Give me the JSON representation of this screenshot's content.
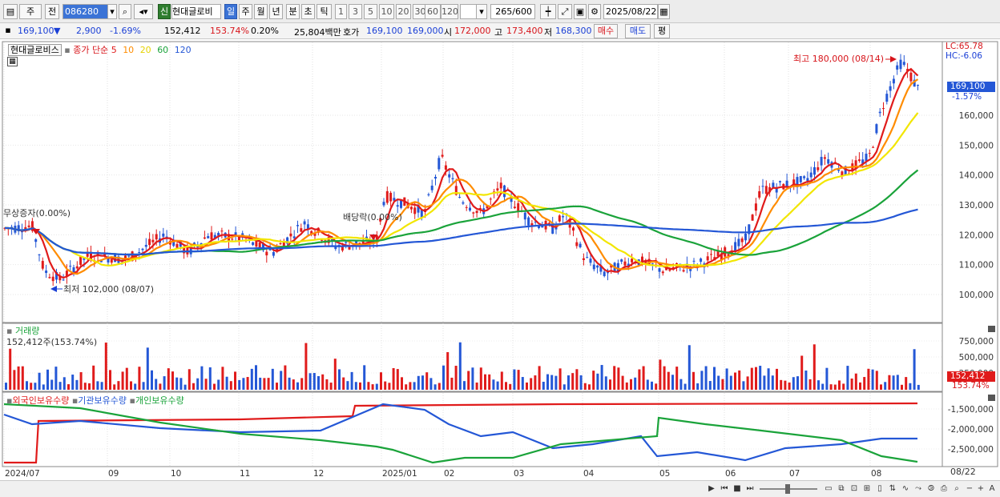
{
  "toolbar": {
    "period": "주",
    "prev": "전",
    "code": "086280",
    "name_badge": "신",
    "name": "현대글로비",
    "day": "일",
    "week": "주",
    "month": "월",
    "year": "년",
    "minute": "분",
    "second": "초",
    "tick": "틱",
    "intervals": [
      "1",
      "3",
      "5",
      "10",
      "20",
      "30",
      "60",
      "120"
    ],
    "count": "265",
    "count_total": "/600",
    "date": "2025/08/22"
  },
  "quote": {
    "price": "169,100",
    "change": "2,900",
    "change_pct": "-1.69%",
    "volume": "152,412",
    "volume_ratio": "153.74%",
    "turnover": "0.20%",
    "amount": "25,804백만",
    "bid_label": "호가",
    "bid1": "169,100",
    "bid2": "169,000",
    "open_label": "시",
    "open": "172,000",
    "high_label": "고",
    "high": "173,400",
    "low_label": "저",
    "low": "168,300",
    "buy": "매수",
    "sell": "매도",
    "avg": "평"
  },
  "price_panel": {
    "title": "현대글로비스",
    "ma_label": "종가 단순",
    "ma_periods": [
      "5",
      "10",
      "20",
      "60",
      "120"
    ],
    "ma_colors": [
      "#e01b1b",
      "#ff8c00",
      "#f2e600",
      "#1aa33a",
      "#2457d6"
    ],
    "lc": "LC:65.78",
    "hc": "HC:-6.06",
    "current": "169,100",
    "current_pct": "-1.57%",
    "high_note": "최고 180,000 (08/14)",
    "low_note": "최저 102,000 (08/07)",
    "event1": "무상증자(0.00%)",
    "event2": "배당락(0.00%)",
    "y_ticks": [
      "160,000",
      "150,000",
      "140,000",
      "130,000",
      "120,000",
      "110,000",
      "100,000"
    ]
  },
  "volume_panel": {
    "title": "거래량",
    "summary": "152,412주(153.74%)",
    "y_ticks": [
      "750,000",
      "500,000",
      "250,000"
    ],
    "current": "152,412",
    "current_pct": "153.74%"
  },
  "holding_panel": {
    "legend": [
      "외국인보유수량",
      "기관보유수량",
      "개인보유수량"
    ],
    "colors": [
      "#e01b1b",
      "#2457d6",
      "#1aa33a"
    ],
    "y_ticks": [
      "-1,500,000",
      "-2,000,000",
      "-2,500,000"
    ]
  },
  "x_axis": {
    "labels": [
      "2024/07",
      "09",
      "10",
      "11",
      "12",
      "2025/01",
      "02",
      "03",
      "04",
      "05",
      "06",
      "07",
      "08"
    ],
    "last": "08/22"
  }
}
